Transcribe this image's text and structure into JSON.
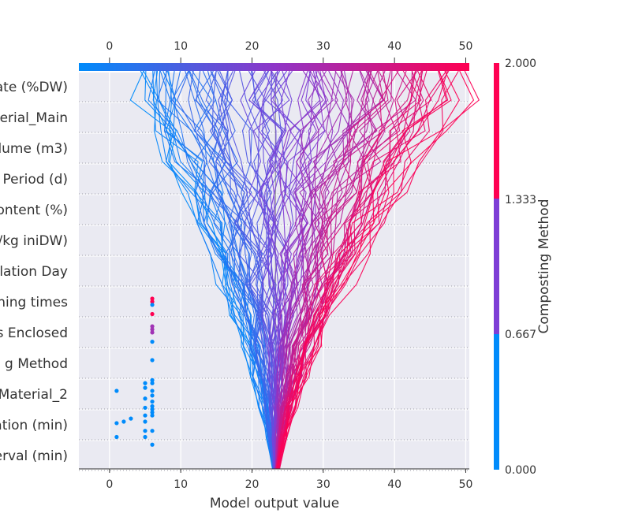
{
  "chart_data": {
    "type": "line",
    "subtype": "shap-decision-plot",
    "xlabel": "Model output value",
    "xlim": [
      -4.3,
      50.5
    ],
    "x_ticks": [
      0,
      10,
      20,
      30,
      40,
      50
    ],
    "x_tick_labels": [
      "0",
      "10",
      "20",
      "30",
      "40",
      "50"
    ],
    "base_value": 23.3,
    "features": [
      "ate (%DW)",
      "erial_Main",
      "lume (m3)",
      "Period (d)",
      "ontent (%)",
      "/kg iniDW)",
      "lation Day",
      "ning times",
      "s Enclosed",
      "g Method",
      "Material_2",
      "ation (min)",
      "erval (min)"
    ],
    "colorbar": {
      "label": "Composting Method",
      "ticks": [
        "0.000",
        "0.667",
        "1.333",
        "2.000"
      ],
      "colors": [
        "#008bfb",
        "#7e3ed6",
        "#ff0052"
      ],
      "min": 0,
      "max": 2
    },
    "grid": true,
    "background": "#eaeaf2",
    "n_lines": 120,
    "feature_value_points": [
      {
        "x": 6,
        "row": 7.0,
        "cls": 2
      },
      {
        "x": 6,
        "row": 7.1,
        "cls": 2
      },
      {
        "x": 6,
        "row": 7.2,
        "cls": 0
      },
      {
        "x": 6,
        "row": 7.5,
        "cls": 2
      },
      {
        "x": 6,
        "row": 7.9,
        "cls": 1
      },
      {
        "x": 6,
        "row": 8.0,
        "cls": 1
      },
      {
        "x": 6,
        "row": 8.1,
        "cls": 1
      },
      {
        "x": 6,
        "row": 8.4,
        "cls": 0
      },
      {
        "x": 6,
        "row": 9.0,
        "cls": 0
      },
      {
        "x": 6,
        "row": 9.65,
        "cls": 0
      },
      {
        "x": 6,
        "row": 9.75,
        "cls": 0
      },
      {
        "x": 5,
        "row": 9.75,
        "cls": 0
      },
      {
        "x": 5,
        "row": 9.9,
        "cls": 0
      },
      {
        "x": 6,
        "row": 10.0,
        "cls": 0
      },
      {
        "x": 1,
        "row": 10.0,
        "cls": 0
      },
      {
        "x": 6,
        "row": 10.15,
        "cls": 0
      },
      {
        "x": 5,
        "row": 10.25,
        "cls": 0
      },
      {
        "x": 6,
        "row": 10.35,
        "cls": 0
      },
      {
        "x": 6,
        "row": 10.5,
        "cls": 0
      },
      {
        "x": 5,
        "row": 10.55,
        "cls": 0
      },
      {
        "x": 6,
        "row": 10.6,
        "cls": 0
      },
      {
        "x": 6,
        "row": 10.7,
        "cls": 0
      },
      {
        "x": 5,
        "row": 10.8,
        "cls": 0
      },
      {
        "x": 6,
        "row": 10.8,
        "cls": 0
      },
      {
        "x": 3,
        "row": 10.9,
        "cls": 0
      },
      {
        "x": 2,
        "row": 11.0,
        "cls": 0
      },
      {
        "x": 5,
        "row": 11.0,
        "cls": 0
      },
      {
        "x": 1,
        "row": 11.05,
        "cls": 0
      },
      {
        "x": 5,
        "row": 11.3,
        "cls": 0
      },
      {
        "x": 6,
        "row": 11.3,
        "cls": 0
      },
      {
        "x": 1,
        "row": 11.5,
        "cls": 0
      },
      {
        "x": 5,
        "row": 11.5,
        "cls": 0
      },
      {
        "x": 6,
        "row": 11.75,
        "cls": 0
      }
    ]
  }
}
